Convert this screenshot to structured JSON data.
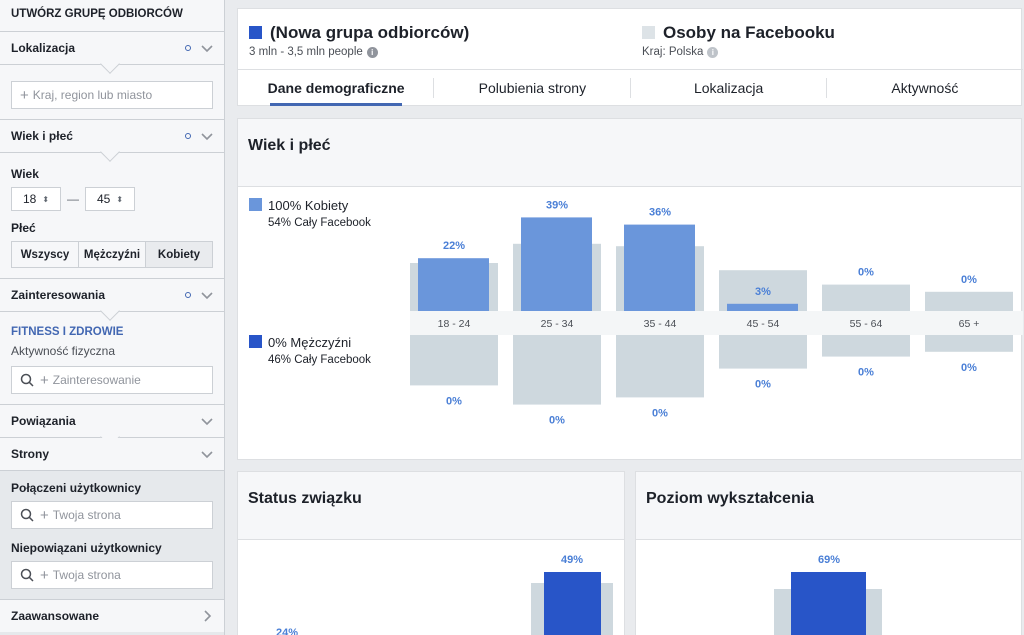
{
  "sidebar": {
    "title": "UTWÓRZ GRUPĘ ODBIORCÓW",
    "location": {
      "label": "Lokalizacja",
      "placeholder": "Kraj, region lub miasto"
    },
    "age_gender": {
      "label": "Wiek i płeć",
      "age_label": "Wiek",
      "age_from": "18",
      "age_to": "45",
      "dash": "—",
      "gender_label": "Płeć",
      "gender_options": [
        "Wszyscy",
        "Mężczyźni",
        "Kobiety"
      ]
    },
    "interests": {
      "label": "Zainteresowania",
      "category": "FITNESS I ZDROWIE",
      "item": "Aktywność fizyczna",
      "placeholder": "Zainteresowanie"
    },
    "connections": {
      "label": "Powiązania"
    },
    "pages": {
      "label": "Strony"
    },
    "connected": {
      "label": "Połączeni użytkownicy",
      "placeholder": "Twoja strona"
    },
    "not_connected": {
      "label": "Niepowiązani użytkownicy",
      "placeholder": "Twoja strona"
    },
    "advanced": {
      "label": "Zaawansowane"
    }
  },
  "header": {
    "audience_name": "(Nowa grupa odbiorców)",
    "audience_size": "3 mln - 3,5 mln people",
    "fb_name": "Osoby na Facebooku",
    "fb_country": "Kraj: Polska",
    "tabs": [
      "Dane demograficzne",
      "Polubienia strony",
      "Lokalizacja",
      "Aktywność"
    ],
    "active_tab": 0
  },
  "colors": {
    "accent": "#4267b2",
    "female_bar": "#6a96db",
    "male_bar": "#2855c8",
    "baseline_bar": "#ced8de"
  },
  "demographics": {
    "title": "Wiek i płeć",
    "women_label": "100% Kobiety",
    "women_fb": "54% Cały Facebook",
    "men_label": "0% Mężczyźni",
    "men_fb": "46% Cały Facebook"
  },
  "chart_data": {
    "type": "bar",
    "categories": [
      "18 - 24",
      "25 - 34",
      "35 - 44",
      "45 - 54",
      "55 - 64",
      "65 +"
    ],
    "series": [
      {
        "name": "100% Kobiety",
        "values": [
          22,
          39,
          36,
          3,
          0,
          0
        ],
        "labels": [
          "22%",
          "39%",
          "36%",
          "3%",
          "0%",
          "0%"
        ]
      },
      {
        "name": "0% Mężczyźni",
        "values": [
          0,
          0,
          0,
          0,
          0,
          0
        ],
        "labels": [
          "0%",
          "0%",
          "0%",
          "0%",
          "0%",
          "0%"
        ]
      }
    ],
    "baseline_women": [
      20,
      28,
      27,
      17,
      11,
      8
    ],
    "baseline_men": [
      21,
      29,
      26,
      14,
      9,
      7
    ]
  },
  "relationship": {
    "title": "Status związku",
    "labels": [
      "24%",
      "49%"
    ]
  },
  "education": {
    "title": "Poziom wykształcenia",
    "labels": [
      "69%"
    ]
  }
}
